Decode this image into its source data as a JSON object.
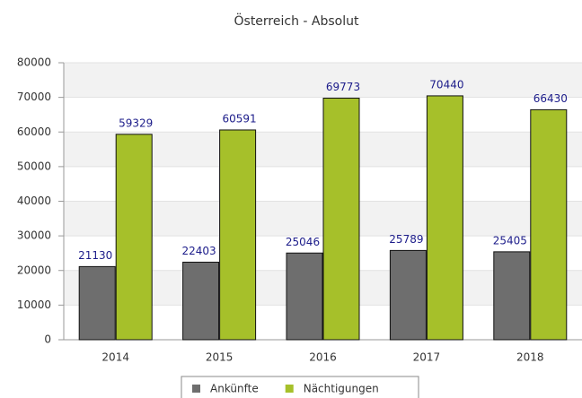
{
  "chart_data": {
    "type": "bar",
    "title": "Österreich - Absolut",
    "categories": [
      "2014",
      "2015",
      "2016",
      "2017",
      "2018"
    ],
    "series": [
      {
        "name": "Ankünfte",
        "color": "#6e6e6e",
        "values": [
          21130,
          22403,
          25046,
          25789,
          25405
        ]
      },
      {
        "name": "Nächtigungen",
        "color": "#a6c02a",
        "values": [
          59329,
          60591,
          69773,
          70440,
          66430
        ]
      }
    ],
    "ylim": [
      0,
      80000
    ],
    "yticks": [
      0,
      10000,
      20000,
      30000,
      40000,
      50000,
      60000,
      70000,
      80000
    ],
    "grid": true,
    "legend": "bottom"
  }
}
